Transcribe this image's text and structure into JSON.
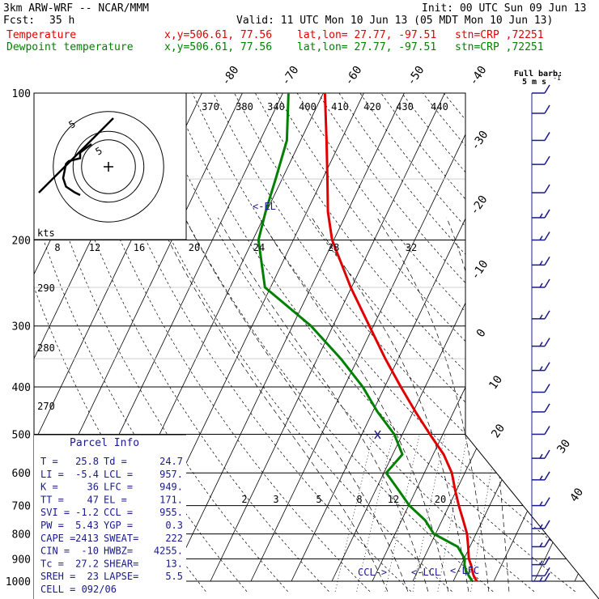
{
  "header": {
    "model": "3km ARW-WRF -- NCAR/MMM",
    "init": "Init: 00 UTC Sun 09 Jun 13",
    "fcst_label": "Fcst:",
    "fcst_value": "35 h",
    "valid": "Valid: 11 UTC Mon 10 Jun 13 (05 MDT Mon 10 Jun 13)",
    "temp_label": "Temperature",
    "dew_label": "Dewpoint temperature",
    "xy": "x,y=506.61, 77.56",
    "latlon": "lat,lon= 27.77, -97.51",
    "stn": "stn=CRP ,72251"
  },
  "colors": {
    "temp": "#e00000",
    "dew": "#008000",
    "barb": "#1a1a8c",
    "grid": "#000000"
  },
  "chart_data": {
    "type": "line",
    "subtype": "skew-T log-p sounding",
    "ylabel": "",
    "y_ticks": [
      100,
      200,
      300,
      400,
      500,
      600,
      700,
      800,
      900,
      1000
    ],
    "isotherm_labels": [
      "-80",
      "-70",
      "-60",
      "-50",
      "-40",
      "-30",
      "-20",
      "-10",
      "0",
      "10",
      "20",
      "30",
      "40"
    ],
    "theta_labels": [
      "370",
      "380",
      "340",
      "400",
      "410",
      "420",
      "430",
      "440"
    ],
    "theta_side_labels": [
      "290",
      "280",
      "270"
    ],
    "mixing_ratio_labels": [
      "2",
      "3",
      "5",
      "8",
      "12",
      "20"
    ],
    "series": [
      {
        "name": "Temperature",
        "points": [
          [
            1000,
            25.8
          ],
          [
            975,
            24.4
          ],
          [
            950,
            23.4
          ],
          [
            925,
            22.4
          ],
          [
            900,
            21.2
          ],
          [
            850,
            19.6
          ],
          [
            800,
            17.8
          ],
          [
            750,
            15.2
          ],
          [
            700,
            12.4
          ],
          [
            650,
            9.6
          ],
          [
            600,
            6.8
          ],
          [
            550,
            2.6
          ],
          [
            500,
            -3.2
          ],
          [
            450,
            -9.4
          ],
          [
            400,
            -16.0
          ],
          [
            350,
            -23.2
          ],
          [
            300,
            -31.0
          ],
          [
            250,
            -40.2
          ],
          [
            200,
            -50.4
          ],
          [
            175,
            -54.8
          ],
          [
            150,
            -58.8
          ],
          [
            125,
            -63.6
          ],
          [
            100,
            -69.6
          ]
        ]
      },
      {
        "name": "Dewpoint temperature",
        "points": [
          [
            1000,
            24.7
          ],
          [
            975,
            23.2
          ],
          [
            950,
            21.8
          ],
          [
            925,
            20.8
          ],
          [
            900,
            20.2
          ],
          [
            850,
            17.0
          ],
          [
            800,
            9.6
          ],
          [
            750,
            5.8
          ],
          [
            700,
            0.2
          ],
          [
            650,
            -4.4
          ],
          [
            600,
            -9.4
          ],
          [
            550,
            -7.6
          ],
          [
            500,
            -12.0
          ],
          [
            450,
            -18.8
          ],
          [
            400,
            -25.4
          ],
          [
            350,
            -34.2
          ],
          [
            300,
            -45.4
          ],
          [
            250,
            -61.4
          ],
          [
            200,
            -68.6
          ],
          [
            175,
            -70.2
          ],
          [
            150,
            -71.6
          ],
          [
            125,
            -73.4
          ],
          [
            100,
            -78.6
          ]
        ]
      }
    ],
    "annotations": [
      "<-EL",
      "CCL->",
      "<-LCL",
      "<-LFC"
    ]
  },
  "hodograph": {
    "units": "kts",
    "speed_labels": [
      "8",
      "12",
      "16",
      "20",
      "24",
      "28",
      "32"
    ],
    "ring_labels": [
      "5",
      "5"
    ],
    "points": [
      [
        -6,
        8
      ],
      [
        -10,
        5
      ],
      [
        -10,
        3
      ],
      [
        -14,
        2
      ],
      [
        -15,
        1
      ],
      [
        -16,
        -4
      ],
      [
        -15,
        -7
      ],
      [
        -12,
        -9
      ],
      [
        -10,
        -10
      ]
    ]
  },
  "barbs_header": {
    "line1": "Full barb:",
    "line2": "5 m s",
    "exp": "-1"
  },
  "wind_profile": [
    {
      "p": 100,
      "speed": 10,
      "dir": 250
    },
    {
      "p": 110,
      "speed": 10,
      "dir": 250
    },
    {
      "p": 125,
      "speed": 10,
      "dir": 245
    },
    {
      "p": 140,
      "speed": 10,
      "dir": 250
    },
    {
      "p": 160,
      "speed": 10,
      "dir": 250
    },
    {
      "p": 180,
      "speed": 5,
      "dir": 260
    },
    {
      "p": 200,
      "speed": 5,
      "dir": 270
    },
    {
      "p": 225,
      "speed": 5,
      "dir": 280
    },
    {
      "p": 250,
      "speed": 5,
      "dir": 270
    },
    {
      "p": 290,
      "speed": 5,
      "dir": 270
    },
    {
      "p": 330,
      "speed": 5,
      "dir": 265
    },
    {
      "p": 370,
      "speed": 5,
      "dir": 255
    },
    {
      "p": 410,
      "speed": 10,
      "dir": 250
    },
    {
      "p": 450,
      "speed": 10,
      "dir": 245
    },
    {
      "p": 500,
      "speed": 10,
      "dir": 245
    },
    {
      "p": 560,
      "speed": 5,
      "dir": 240
    },
    {
      "p": 620,
      "speed": 5,
      "dir": 230
    },
    {
      "p": 700,
      "speed": 5,
      "dir": 200
    },
    {
      "p": 780,
      "speed": 5,
      "dir": 180
    },
    {
      "p": 850,
      "speed": 5,
      "dir": 170
    },
    {
      "p": 925,
      "speed": 5,
      "dir": 160
    },
    {
      "p": 975,
      "speed": 10,
      "dir": 150
    },
    {
      "p": 1000,
      "speed": 5,
      "dir": 140
    }
  ],
  "parcel": {
    "title": "Parcel Info",
    "rows": [
      [
        "T  =",
        "25.8",
        "Td =",
        "24.7"
      ],
      [
        "LI =",
        "-5.4",
        "LCL =",
        "957."
      ],
      [
        "K  =",
        "36",
        "LFC =",
        "949."
      ],
      [
        "TT =",
        "47",
        "EL =",
        "171."
      ],
      [
        "SVI =",
        "-1.2",
        "CCL =",
        "955."
      ],
      [
        "PW =",
        "5.43",
        "YGP =",
        "0.3"
      ],
      [
        "CAPE =",
        "2413",
        "SWEAT=",
        "222"
      ],
      [
        "CIN =",
        "-10",
        "HWBZ=",
        "4255."
      ],
      [
        "Tc =",
        "27.2",
        "SHEAR=",
        "13."
      ],
      [
        "SREH =",
        "23",
        "LAPSE=",
        "5.5"
      ]
    ],
    "cell": "CELL = 092/06"
  }
}
